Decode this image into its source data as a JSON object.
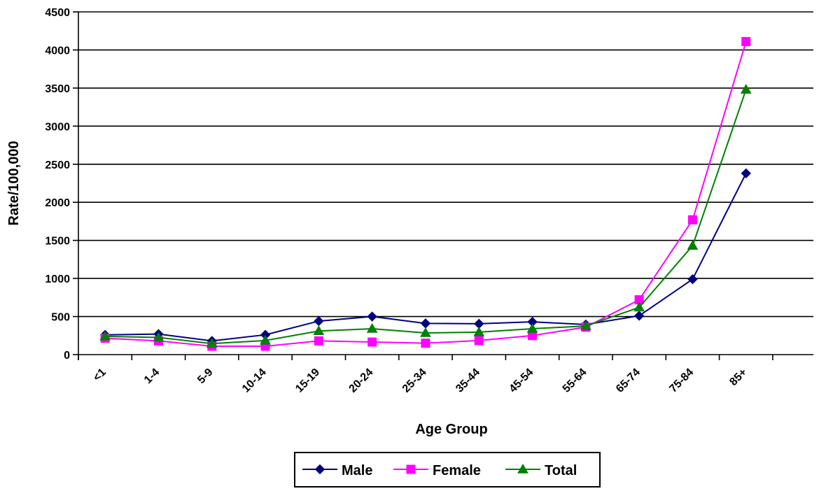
{
  "chart_data": {
    "type": "line",
    "title": "",
    "xlabel": "Age Group",
    "ylabel": "Rate/100,000",
    "categories": [
      "<1",
      "1-4",
      "5-9",
      "10-14",
      "15-19",
      "20-24",
      "25-34",
      "35-44",
      "45-54",
      "55-64",
      "65-74",
      "75-84",
      "85+"
    ],
    "ylim": [
      0,
      4500
    ],
    "yticks": [
      0,
      500,
      1000,
      1500,
      2000,
      2500,
      3000,
      3500,
      4000,
      4500
    ],
    "grid": "horizontal",
    "legend": "bottom",
    "series": [
      {
        "name": "Male",
        "color": "#000080",
        "marker": "diamond",
        "values": [
          260,
          270,
          180,
          260,
          440,
          500,
          410,
          405,
          430,
          395,
          510,
          990,
          2380
        ]
      },
      {
        "name": "Female",
        "color": "#ff00ff",
        "marker": "square",
        "values": [
          215,
          180,
          110,
          110,
          180,
          165,
          150,
          185,
          250,
          360,
          720,
          1770,
          4110
        ]
      },
      {
        "name": "Total",
        "color": "#008000",
        "marker": "triangle",
        "values": [
          240,
          225,
          145,
          185,
          310,
          340,
          285,
          295,
          340,
          375,
          620,
          1430,
          3480
        ]
      }
    ]
  }
}
